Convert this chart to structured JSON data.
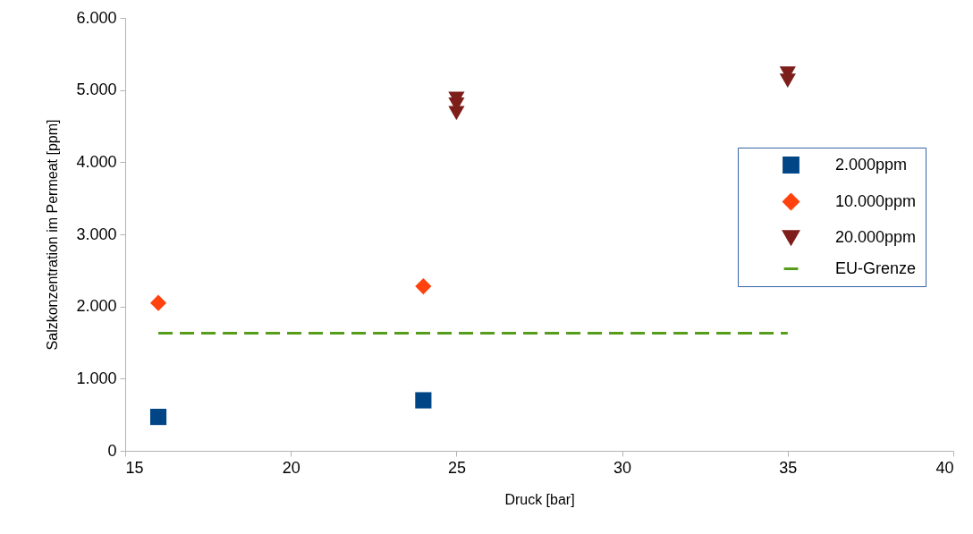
{
  "chart_data": {
    "type": "scatter",
    "xlabel": "Druck [bar]",
    "ylabel": "Salzkonzentration im Permeat [ppm]",
    "xlim": [
      15,
      40
    ],
    "xticks": [
      15,
      20,
      25,
      30,
      35,
      40
    ],
    "ylim": [
      0,
      6000
    ],
    "yticks": [
      0,
      {
        "value": 1000,
        "label": "1.000"
      },
      {
        "value": 2000,
        "label": "2.000"
      },
      {
        "value": 3000,
        "label": "3.000"
      },
      {
        "value": 4000,
        "label": "4.000"
      },
      {
        "value": 5000,
        "label": "5.000"
      },
      {
        "value": 6000,
        "label": "6.000"
      }
    ],
    "legend": "right",
    "series": [
      {
        "name": "2.000ppm",
        "color": "#004586",
        "marker": "square",
        "x": [
          16,
          24
        ],
        "values": [
          470,
          700
        ]
      },
      {
        "name": "10.000ppm",
        "color": "#ff420e",
        "marker": "diamond",
        "x": [
          16,
          24
        ],
        "values": [
          2050,
          2280
        ]
      },
      {
        "name": "20.000ppm",
        "color": "#7e1e1a",
        "marker": "triangle",
        "x": [
          25,
          25,
          25,
          35,
          35
        ],
        "values": [
          4880,
          4800,
          4680,
          5230,
          5130
        ]
      },
      {
        "name": "EU-Grenze",
        "type": "line",
        "color": "#579d1c",
        "line_style": "dashed",
        "marker": "none",
        "x": [
          16,
          35
        ],
        "values": [
          1630,
          1630
        ]
      }
    ]
  }
}
